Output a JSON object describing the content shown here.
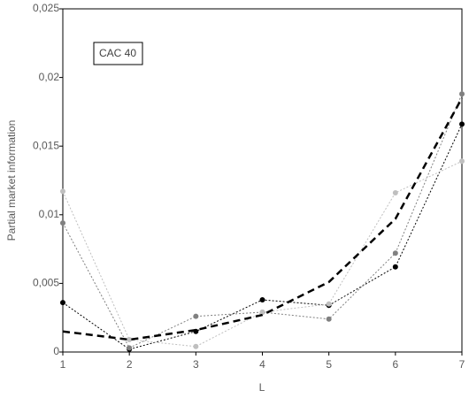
{
  "chart_data": {
    "type": "line",
    "x_label": "L",
    "y_label": "Partial market information",
    "annotation": "CAC 40",
    "x": [
      1,
      2,
      3,
      4,
      5,
      6,
      7
    ],
    "series": [
      {
        "color": "#000000",
        "line_style": "dotted",
        "markers": true,
        "values": [
          0.0036,
          0.0002,
          0.0015,
          0.0038,
          0.0034,
          0.0062,
          0.0166
        ]
      },
      {
        "color": "#808080",
        "line_style": "dotted",
        "markers": true,
        "values": [
          0.0094,
          0.0003,
          0.0026,
          0.0029,
          0.0024,
          0.0072,
          0.0188
        ]
      },
      {
        "color": "#bfbfbf",
        "line_style": "dotted",
        "markers": true,
        "values": [
          0.0117,
          0.0009,
          0.0004,
          0.0029,
          0.0035,
          0.0116,
          0.0139
        ]
      },
      {
        "color": "#000000",
        "line_style": "dashed",
        "markers": false,
        "values": [
          0.0015,
          0.0009,
          0.0016,
          0.0027,
          0.0051,
          0.0097,
          0.0185
        ]
      }
    ],
    "xlim": [
      1,
      7
    ],
    "xticks": [
      1,
      2,
      3,
      4,
      5,
      6,
      7
    ],
    "ylim": [
      0,
      0.025
    ],
    "yticks": [
      0,
      {
        "value": 0.005,
        "label": "0,005"
      },
      {
        "value": 0.01,
        "label": "0,01"
      },
      {
        "value": 0.015,
        "label": "0,015"
      },
      {
        "value": 0.02,
        "label": "0,02"
      },
      {
        "value": 0.025,
        "label": "0,025"
      }
    ]
  }
}
